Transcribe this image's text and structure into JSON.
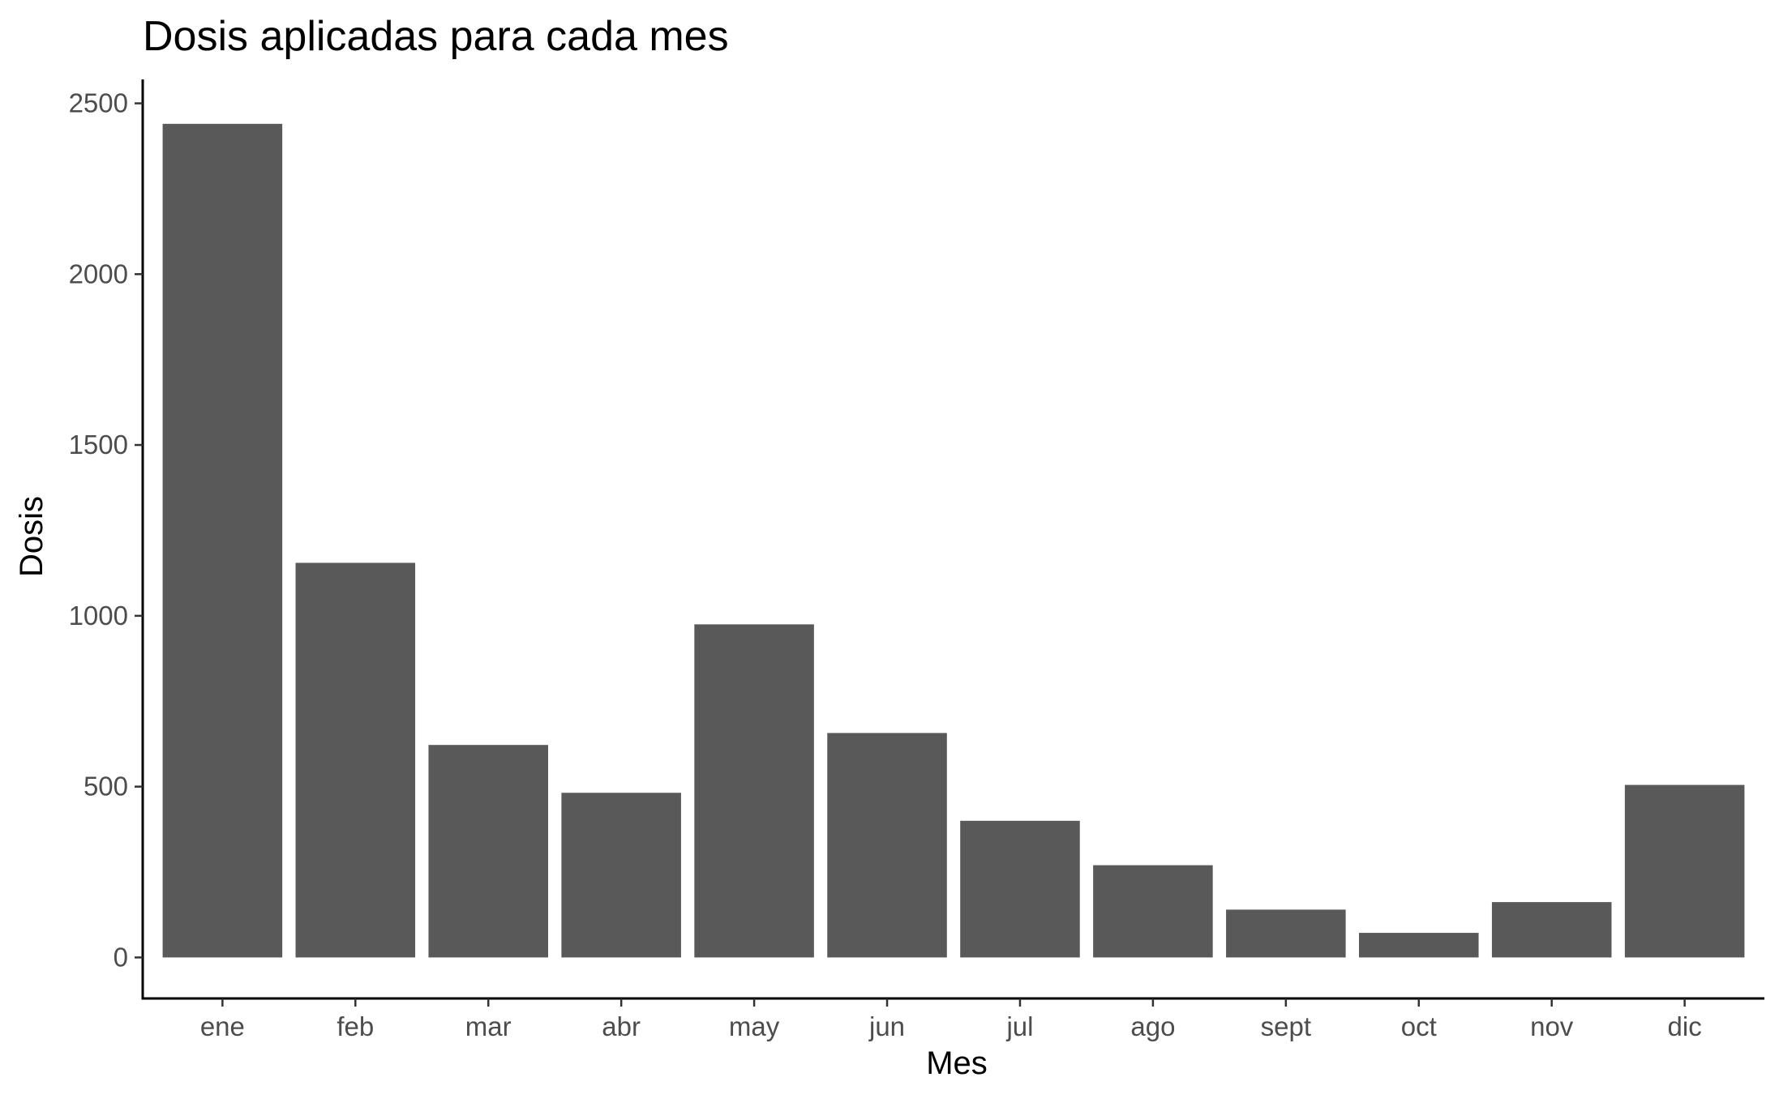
{
  "chart_data": {
    "type": "bar",
    "title": "Dosis aplicadas para cada mes",
    "xlabel": "Mes",
    "ylabel": "Dosis",
    "categories": [
      "ene",
      "feb",
      "mar",
      "abr",
      "may",
      "jun",
      "jul",
      "ago",
      "sept",
      "oct",
      "nov",
      "dic"
    ],
    "values": [
      2440,
      1155,
      622,
      482,
      975,
      657,
      400,
      270,
      140,
      72,
      162,
      505
    ],
    "ylim": [
      -120,
      2570
    ],
    "yticks": [
      0,
      500,
      1000,
      1500,
      2000,
      2500
    ],
    "grid": false,
    "legend": "none",
    "bar_color": "#595959",
    "axis_color": "#000000",
    "tick_label_color": "#4d4d4d"
  }
}
